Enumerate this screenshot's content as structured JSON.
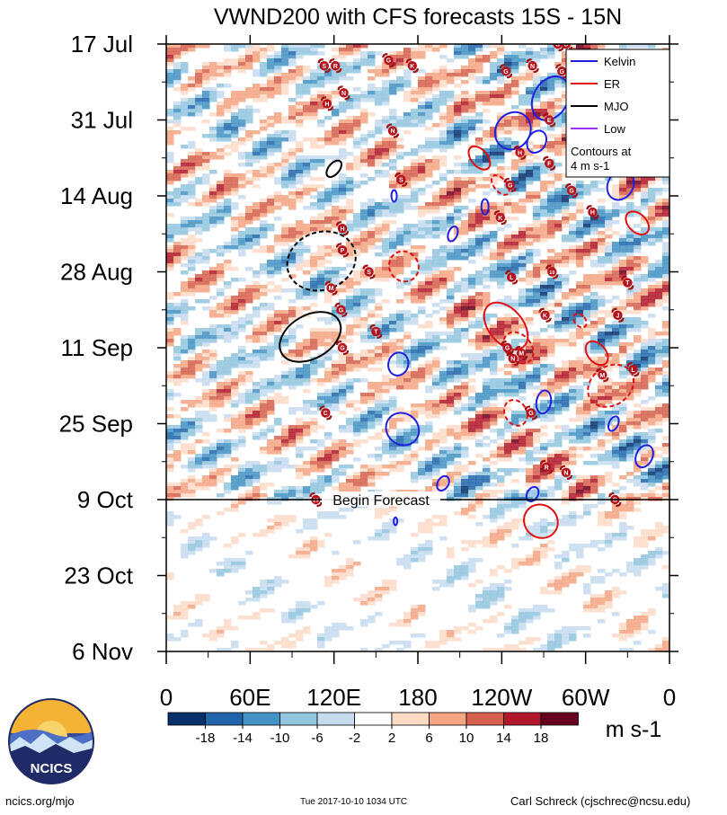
{
  "chart_data": {
    "type": "heatmap",
    "title": "VWND200 with CFS forecasts  15S - 15N",
    "units": "m s-1",
    "x_range_deg": [
      0,
      360
    ],
    "x_ticks": [
      {
        "lon": 0,
        "label": "0"
      },
      {
        "lon": 60,
        "label": "60E"
      },
      {
        "lon": 120,
        "label": "120E"
      },
      {
        "lon": 180,
        "label": "180"
      },
      {
        "lon": 240,
        "label": "120W"
      },
      {
        "lon": 300,
        "label": "60W"
      },
      {
        "lon": 360,
        "label": "0"
      }
    ],
    "y_days_range": [
      0,
      112
    ],
    "y_ticks": [
      {
        "day": 0,
        "label": "17 Jul"
      },
      {
        "day": 14,
        "label": "31 Jul"
      },
      {
        "day": 28,
        "label": "14 Aug"
      },
      {
        "day": 42,
        "label": "28 Aug"
      },
      {
        "day": 56,
        "label": "11 Sep"
      },
      {
        "day": 70,
        "label": "25 Sep"
      },
      {
        "day": 84,
        "label": "9 Oct"
      },
      {
        "day": 98,
        "label": "23 Oct"
      },
      {
        "day": 112,
        "label": "6 Nov"
      }
    ],
    "forecast_start_day": 84,
    "forecast_label": "Begin Forecast",
    "colorbar": {
      "colors": [
        "#08306b",
        "#2166ac",
        "#4393c3",
        "#92c5de",
        "#c6dbef",
        "#ffffff",
        "#fddbc7",
        "#f4a582",
        "#d6604d",
        "#b2182b",
        "#67001f"
      ],
      "labels": [
        "-18",
        "-14",
        "-10",
        "-6",
        "-2",
        "2",
        "6",
        "10",
        "14",
        "18"
      ]
    },
    "legend": {
      "entries": [
        {
          "name": "Kelvin",
          "color": "#1f1fe0"
        },
        {
          "name": "ER",
          "color": "#e01010"
        },
        {
          "name": "MJO",
          "color": "#000000"
        },
        {
          "name": "Low",
          "color": "#9b30ff"
        }
      ],
      "note_line1": "Contours at",
      "note_line2": "4 m s-1"
    },
    "wave_contours": [
      {
        "wave": "Kelvin",
        "lon": 275,
        "day": 10,
        "rx": 19,
        "ry": 6,
        "rot": 30,
        "dashed": false
      },
      {
        "wave": "Kelvin",
        "lon": 248,
        "day": 16,
        "rx": 19,
        "ry": 5,
        "rot": 35,
        "dashed": false
      },
      {
        "wave": "Kelvin",
        "lon": 265,
        "day": 18,
        "rx": 10,
        "ry": 3,
        "rot": 30,
        "dashed": false
      },
      {
        "wave": "Kelvin",
        "lon": 325,
        "day": 26,
        "rx": 14,
        "ry": 4,
        "rot": 30,
        "dashed": false
      },
      {
        "wave": "Kelvin",
        "lon": 163,
        "day": 28,
        "rx": 3,
        "ry": 1.5,
        "rot": 0,
        "dashed": false
      },
      {
        "wave": "Kelvin",
        "lon": 228,
        "day": 30,
        "rx": 4,
        "ry": 2,
        "rot": 0,
        "dashed": false
      },
      {
        "wave": "Kelvin",
        "lon": 205,
        "day": 35,
        "rx": 5,
        "ry": 2,
        "rot": 20,
        "dashed": false
      },
      {
        "wave": "Kelvin",
        "lon": 166,
        "day": 59,
        "rx": 11,
        "ry": 3,
        "rot": 15,
        "dashed": false
      },
      {
        "wave": "Kelvin",
        "lon": 270,
        "day": 66,
        "rx": 8,
        "ry": 3,
        "rot": 10,
        "dashed": false
      },
      {
        "wave": "Kelvin",
        "lon": 169,
        "day": 71,
        "rx": 19,
        "ry": 4,
        "rot": 40,
        "dashed": false
      },
      {
        "wave": "Kelvin",
        "lon": 320,
        "day": 70,
        "rx": 5,
        "ry": 2,
        "rot": 25,
        "dashed": false
      },
      {
        "wave": "Kelvin",
        "lon": 342,
        "day": 76,
        "rx": 9,
        "ry": 3,
        "rot": 25,
        "dashed": false
      },
      {
        "wave": "Kelvin",
        "lon": 198,
        "day": 81,
        "rx": 6,
        "ry": 2,
        "rot": 30,
        "dashed": false
      },
      {
        "wave": "Kelvin",
        "lon": 262,
        "day": 83,
        "rx": 6,
        "ry": 2,
        "rot": 30,
        "dashed": false
      },
      {
        "wave": "Kelvin",
        "lon": 164,
        "day": 88,
        "rx": 2,
        "ry": 1,
        "rot": 0,
        "dashed": false
      },
      {
        "wave": "ER",
        "lon": 224,
        "day": 21,
        "rx": 9,
        "ry": 3.5,
        "rot": -40,
        "dashed": false
      },
      {
        "wave": "ER",
        "lon": 239,
        "day": 26,
        "rx": 7,
        "ry": 3,
        "rot": -40,
        "dashed": true
      },
      {
        "wave": "ER",
        "lon": 337,
        "day": 33,
        "rx": 10,
        "ry": 3.5,
        "rot": -45,
        "dashed": false
      },
      {
        "wave": "ER",
        "lon": 170,
        "day": 41,
        "rx": 16,
        "ry": 4,
        "rot": -35,
        "dashed": true
      },
      {
        "wave": "ER",
        "lon": 243,
        "day": 52,
        "rx": 19,
        "ry": 7,
        "rot": -40,
        "dashed": false
      },
      {
        "wave": "ER",
        "lon": 296,
        "day": 51,
        "rx": 6,
        "ry": 2,
        "rot": -40,
        "dashed": true
      },
      {
        "wave": "ER",
        "lon": 252,
        "day": 56,
        "rx": 14,
        "ry": 4.5,
        "rot": -40,
        "dashed": true
      },
      {
        "wave": "ER",
        "lon": 308,
        "day": 57,
        "rx": 10,
        "ry": 3.5,
        "rot": -40,
        "dashed": false
      },
      {
        "wave": "ER",
        "lon": 318,
        "day": 63,
        "rx": 27,
        "ry": 5,
        "rot": -35,
        "dashed": true
      },
      {
        "wave": "ER",
        "lon": 250,
        "day": 68,
        "rx": 12,
        "ry": 3.5,
        "rot": -30,
        "dashed": true
      },
      {
        "wave": "ER",
        "lon": 268,
        "day": 88,
        "rx": 18,
        "ry": 4.5,
        "rot": -50,
        "dashed": false
      },
      {
        "wave": "MJO",
        "lon": 120,
        "day": 23,
        "rx": 6,
        "ry": 2.5,
        "rot": 40,
        "dashed": false
      },
      {
        "wave": "MJO",
        "lon": 111,
        "day": 40,
        "rx": 32,
        "ry": 9,
        "rot": 70,
        "dashed": true
      },
      {
        "wave": "MJO",
        "lon": 103,
        "day": 54,
        "rx": 24,
        "ry": 8.5,
        "rot": 60,
        "dashed": false
      }
    ],
    "storm_markers": [
      {
        "lon": 280,
        "day": 0,
        "letter": "S"
      },
      {
        "lon": 286,
        "day": 0,
        "letter": "G"
      },
      {
        "lon": 113,
        "day": 4,
        "letter": "S"
      },
      {
        "lon": 121,
        "day": 4,
        "letter": "R"
      },
      {
        "lon": 159,
        "day": 3,
        "letter": "G"
      },
      {
        "lon": 176,
        "day": 4,
        "letter": "K"
      },
      {
        "lon": 243,
        "day": 5,
        "letter": "G"
      },
      {
        "lon": 262,
        "day": 4,
        "letter": "N"
      },
      {
        "lon": 283,
        "day": 5,
        "letter": "G"
      },
      {
        "lon": 127,
        "day": 9,
        "letter": "N"
      },
      {
        "lon": 115,
        "day": 11,
        "letter": "H"
      },
      {
        "lon": 162,
        "day": 16,
        "letter": "N"
      },
      {
        "lon": 274,
        "day": 14,
        "letter": "E"
      },
      {
        "lon": 253,
        "day": 20,
        "letter": "H"
      },
      {
        "lon": 274,
        "day": 22,
        "letter": "F"
      },
      {
        "lon": 168,
        "day": 25,
        "letter": "S"
      },
      {
        "lon": 246,
        "day": 26,
        "letter": "G"
      },
      {
        "lon": 290,
        "day": 27,
        "letter": "G"
      },
      {
        "lon": 239,
        "day": 32,
        "letter": "K"
      },
      {
        "lon": 305,
        "day": 31,
        "letter": "H"
      },
      {
        "lon": 126,
        "day": 34,
        "letter": "H"
      },
      {
        "lon": 126,
        "day": 38,
        "letter": "P"
      },
      {
        "lon": 145,
        "day": 42,
        "letter": "S"
      },
      {
        "lon": 247,
        "day": 43,
        "letter": "L"
      },
      {
        "lon": 276,
        "day": 42,
        "letter": "10"
      },
      {
        "lon": 330,
        "day": 44,
        "letter": "T"
      },
      {
        "lon": 118,
        "day": 45,
        "letter": "M"
      },
      {
        "lon": 125,
        "day": 49,
        "letter": "G"
      },
      {
        "lon": 271,
        "day": 50,
        "letter": "K"
      },
      {
        "lon": 323,
        "day": 50,
        "letter": "J"
      },
      {
        "lon": 150,
        "day": 53,
        "letter": "T"
      },
      {
        "lon": 126,
        "day": 56,
        "letter": "G"
      },
      {
        "lon": 244,
        "day": 56,
        "letter": "G"
      },
      {
        "lon": 248,
        "day": 58,
        "letter": "N"
      },
      {
        "lon": 254,
        "day": 57,
        "letter": "M"
      },
      {
        "lon": 312,
        "day": 61,
        "letter": "M"
      },
      {
        "lon": 334,
        "day": 60,
        "letter": "L"
      },
      {
        "lon": 114,
        "day": 68,
        "letter": "C"
      },
      {
        "lon": 261,
        "day": 68,
        "letter": "G"
      },
      {
        "lon": 272,
        "day": 78,
        "letter": "R"
      },
      {
        "lon": 286,
        "day": 79,
        "letter": "N"
      },
      {
        "lon": 107,
        "day": 84,
        "letter": "23"
      },
      {
        "lon": 321,
        "day": 84,
        "letter": "G"
      }
    ]
  },
  "footer": {
    "left": "ncics.org/mjo",
    "center": "Tue 2017-10-10 1034 UTC",
    "right": "Carl Schreck (cjschrec@ncsu.edu)",
    "logo_text": "NCICS"
  }
}
